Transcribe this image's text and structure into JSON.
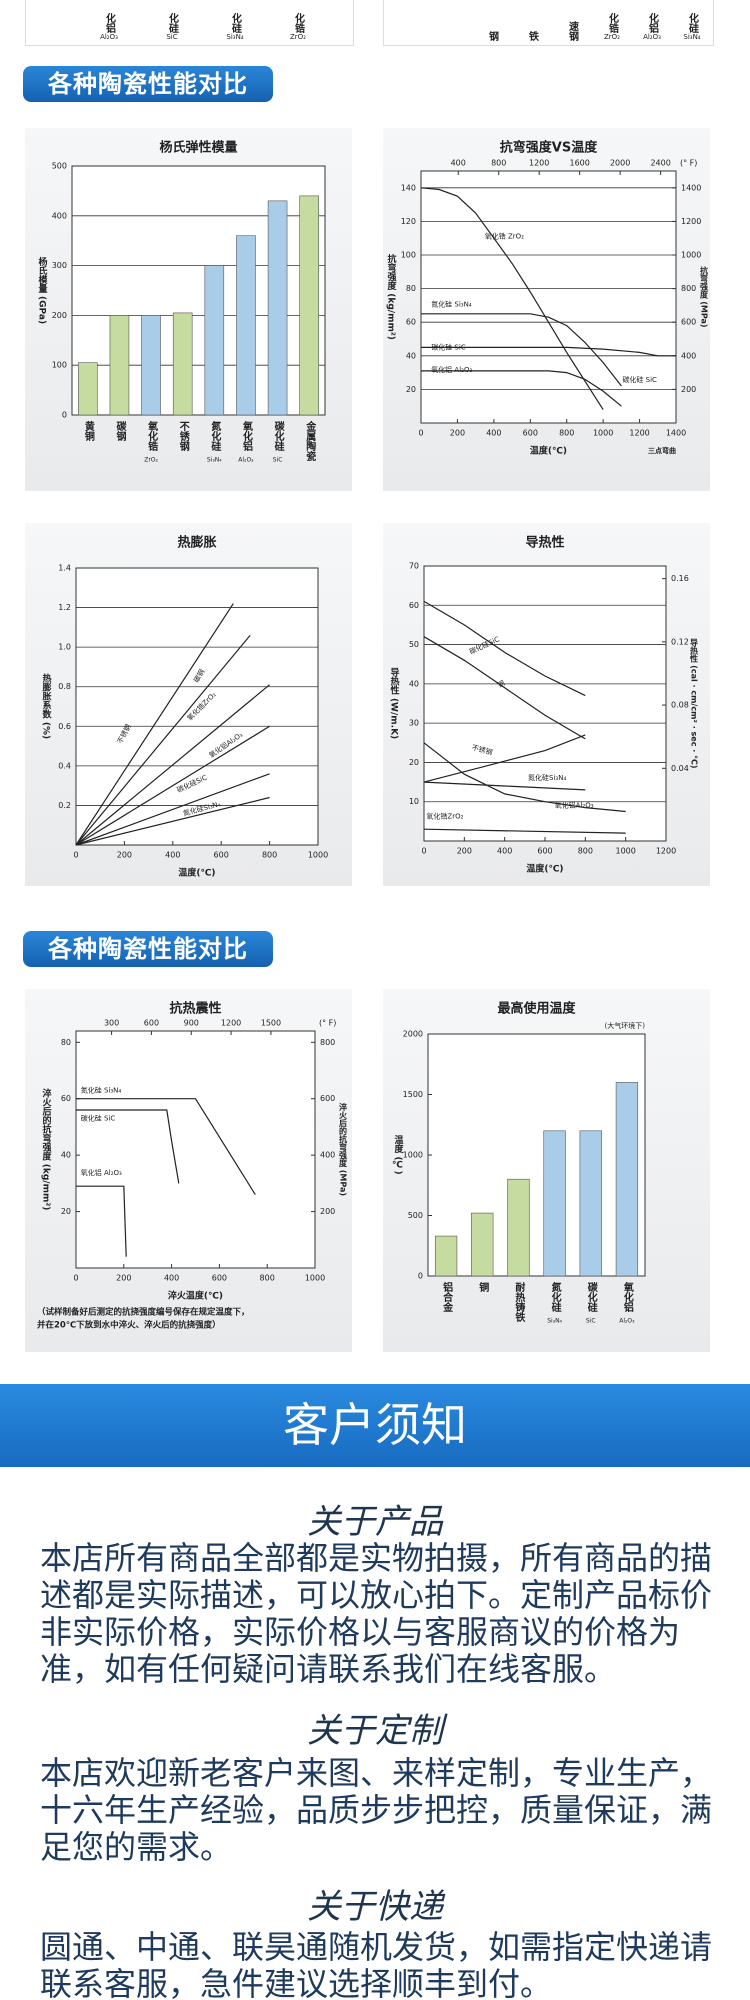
{
  "top_fragment": {
    "left": [
      {
        "label": "化铝",
        "sub": "Al₂O₃"
      },
      {
        "label": "化硅",
        "sub": "SiC"
      },
      {
        "label": "化硅",
        "sub": "Si₃N₄"
      },
      {
        "label": "化锆",
        "sub": "ZrO₂"
      }
    ],
    "right": [
      {
        "label": "钢"
      },
      {
        "label": "铁"
      },
      {
        "label": "速钢"
      },
      {
        "label": "化锆",
        "sub": "ZrO₂"
      },
      {
        "label": "化铝",
        "sub": "Al₂O₃"
      },
      {
        "label": "化硅",
        "sub": "Si₃N₄"
      }
    ]
  },
  "headers": [
    "各种陶瓷性能对比",
    "各种陶瓷性能对比"
  ],
  "chart_data": [
    {
      "type": "bar",
      "title": "杨氏弹性模量",
      "ylabel": "杨氏模量 (GPa)",
      "categories": [
        "黄铜",
        "碳钢",
        "氧化锆",
        "不锈钢",
        "氮化硅",
        "氧化铝",
        "碳化硅",
        "金属陶瓷"
      ],
      "category_sublabels": [
        null,
        null,
        "ZrO₂",
        null,
        "Si₃N₄",
        "Al₂O₃",
        "SiC",
        null
      ],
      "values": [
        105,
        200,
        200,
        205,
        300,
        360,
        430,
        440
      ],
      "colors": [
        "#c5dba0",
        "#c5dba0",
        "#a9cde8",
        "#c5dba0",
        "#a9cde8",
        "#a9cde8",
        "#a9cde8",
        "#c5dba0"
      ],
      "ylim": [
        0,
        500
      ],
      "yticks": [
        0,
        100,
        200,
        300,
        400,
        500
      ],
      "grid": true
    },
    {
      "type": "line",
      "title": "抗弯强度VS温度",
      "xlabel": "温度(℃)",
      "ylabel": "抗弯强度 (kg/mm²)",
      "y2label": "抗弯强度 (MPa)",
      "x2label": "(° F)",
      "note": "三点弯曲",
      "xlim": [
        0,
        1400
      ],
      "xticks": [
        0,
        200,
        400,
        600,
        800,
        1000,
        1200,
        1400
      ],
      "x2lim": [
        32,
        2552
      ],
      "x2ticks": [
        400,
        800,
        1200,
        1600,
        2000,
        2400
      ],
      "ylim": [
        0,
        150
      ],
      "yticks": [
        20,
        40,
        60,
        80,
        100,
        120,
        140
      ],
      "y2lim": [
        0,
        1500
      ],
      "y2ticks": [
        200,
        400,
        600,
        800,
        1000,
        1200,
        1400
      ],
      "grid": true,
      "annotations": [
        "碳化硅 SiC"
      ],
      "series": [
        {
          "name": "氧化锆 ZrO₂",
          "color": "#222222",
          "x": [
            0,
            100,
            200,
            300,
            400,
            500,
            600,
            700,
            800,
            900,
            1000
          ],
          "values": [
            140,
            139,
            135,
            125,
            110,
            95,
            78,
            60,
            42,
            25,
            8
          ]
        },
        {
          "name": "氮化硅 Si₃N₄",
          "color": "#222222",
          "x": [
            0,
            600,
            700,
            800,
            900,
            1000,
            1100
          ],
          "values": [
            65,
            65,
            63,
            58,
            48,
            36,
            22
          ]
        },
        {
          "name": "碳化硅 SiC",
          "color": "#222222",
          "x": [
            0,
            800,
            1000,
            1200,
            1300,
            1400
          ],
          "values": [
            45,
            45,
            44,
            42,
            40,
            40
          ]
        },
        {
          "name": "氧化铝 Al₂O₃",
          "color": "#222222",
          "x": [
            0,
            700,
            800,
            900,
            1000,
            1100
          ],
          "values": [
            31,
            31,
            30,
            26,
            19,
            10
          ]
        }
      ]
    },
    {
      "type": "line",
      "title": "热膨胀",
      "xlabel": "温度(℃)",
      "ylabel": "热膨胀系数 (%)",
      "xlim": [
        0,
        1000
      ],
      "xticks": [
        0,
        200,
        400,
        600,
        800,
        1000
      ],
      "ylim": [
        0,
        1.4
      ],
      "yticks": [
        0.2,
        0.4,
        0.6,
        0.8,
        {
          "value": 1,
          "label": "1.0"
        },
        1.2,
        1.4
      ],
      "grid": true,
      "series": [
        {
          "name": "不锈钢",
          "color": "#222222",
          "x": [
            0,
            650
          ],
          "values": [
            0,
            1.22
          ]
        },
        {
          "name": "碳钢",
          "color": "#222222",
          "x": [
            0,
            720
          ],
          "values": [
            0,
            1.06
          ]
        },
        {
          "name": "氧化锆ZrO₂",
          "color": "#222222",
          "x": [
            0,
            800
          ],
          "values": [
            0,
            0.81
          ]
        },
        {
          "name": "氧化铝Al₂O₃",
          "color": "#222222",
          "x": [
            0,
            800
          ],
          "values": [
            0,
            0.6
          ]
        },
        {
          "name": "碳化硅SiC",
          "color": "#222222",
          "x": [
            0,
            800
          ],
          "values": [
            0,
            0.36
          ]
        },
        {
          "name": "氮化硅Si₃N₄",
          "color": "#222222",
          "x": [
            0,
            800
          ],
          "values": [
            0,
            0.24
          ]
        }
      ]
    },
    {
      "type": "line",
      "title": "导热性",
      "xlabel": "温度(℃)",
      "ylabel": "导热性 (W/m.K)",
      "y2label": "导热性 (cal · cm/cm² · sec · °C)",
      "xlim": [
        0,
        1200
      ],
      "xticks": [
        0,
        200,
        400,
        600,
        800,
        1000,
        1200
      ],
      "ylim": [
        0,
        70
      ],
      "yticks": [
        10,
        20,
        30,
        40,
        50,
        60,
        70
      ],
      "y2lim": [
        -0.006,
        0.168
      ],
      "y2ticks": [
        0.04,
        0.08,
        0.12,
        0.16
      ],
      "grid": true,
      "series": [
        {
          "name": "碳化硅SiC",
          "color": "#222222",
          "x": [
            0,
            200,
            400,
            600,
            800
          ],
          "values": [
            61,
            55,
            48,
            42,
            37
          ]
        },
        {
          "name": "钢",
          "color": "#222222",
          "x": [
            0,
            200,
            400,
            600,
            800
          ],
          "values": [
            52,
            46,
            39,
            32,
            26
          ]
        },
        {
          "name": "不锈钢",
          "color": "#222222",
          "x": [
            0,
            300,
            600,
            800
          ],
          "values": [
            15,
            19,
            23,
            27
          ]
        },
        {
          "name": "氮化硅Si₃N₄",
          "color": "#222222",
          "x": [
            0,
            400,
            800
          ],
          "values": [
            15,
            14,
            13
          ]
        },
        {
          "name": "氧化铝Al₂O₃",
          "color": "#222222",
          "x": [
            0,
            200,
            400,
            600,
            800,
            1000
          ],
          "values": [
            25,
            17,
            12,
            10,
            8.5,
            7.5
          ]
        },
        {
          "name": "氧化锆ZrO₂",
          "color": "#222222",
          "x": [
            0,
            1000
          ],
          "values": [
            3,
            2
          ]
        }
      ]
    },
    {
      "type": "line",
      "title": "抗热震性",
      "xlabel": "淬火温度(℃)",
      "ylabel": "淬火后的抗弯强度 (kg/mm²)",
      "y2label": "淬火后的抗弯强度 (MPa)",
      "x2label": "(° F)",
      "note": [
        "（试样制备好后测定的抗挠强度编号保存在规定温度下，",
        "并在20℃下放到水中淬火、淬火后的抗挠强度）"
      ],
      "xlim": [
        0,
        1000
      ],
      "xticks": [
        0,
        200,
        400,
        600,
        800,
        1000
      ],
      "x2lim": [
        32,
        1832
      ],
      "x2ticks": [
        300,
        600,
        900,
        1200,
        1500
      ],
      "ylim": [
        0,
        84
      ],
      "yticks": [
        20,
        40,
        60,
        80
      ],
      "y2lim": [
        0,
        840
      ],
      "y2ticks": [
        200,
        400,
        600,
        800
      ],
      "grid": false,
      "series": [
        {
          "name": "氮化硅 Si₃N₄",
          "color": "#222222",
          "x": [
            0,
            500,
            750
          ],
          "values": [
            60,
            60,
            26
          ]
        },
        {
          "name": "碳化硅 SiC",
          "color": "#222222",
          "x": [
            0,
            380,
            400,
            430
          ],
          "values": [
            56,
            56,
            45,
            30
          ]
        },
        {
          "name": "氧化铝 Al₂O₃",
          "color": "#222222",
          "x": [
            0,
            200,
            210
          ],
          "values": [
            29,
            29,
            4
          ]
        }
      ]
    },
    {
      "type": "bar",
      "title": "最高使用温度",
      "subtitle": "(大气环境下)",
      "ylabel": "温度 (℃)",
      "categories": [
        "铝合金",
        "铜",
        "耐热铸铁",
        "氮化硅",
        "碳化硅",
        "氧化铝"
      ],
      "category_sublabels": [
        null,
        null,
        null,
        "Si₃N₄",
        "SiC",
        "Al₂O₃"
      ],
      "values": [
        330,
        520,
        800,
        1200,
        1200,
        1600
      ],
      "colors": [
        "#c5dba0",
        "#c5dba0",
        "#c5dba0",
        "#a9cde8",
        "#a9cde8",
        "#a9cde8"
      ],
      "ylim": [
        0,
        2000
      ],
      "yticks": [
        0,
        500,
        1000,
        1500,
        2000
      ],
      "grid": false
    }
  ],
  "notice": {
    "title": "客户须知",
    "sections": [
      {
        "heading": "关于产品",
        "body": "本店所有商品全部都是实物拍摄，所有商品的描述都是实际描述，可以放心拍下。定制产品标价非实际价格，实际价格以与客服商议的价格为准，如有任何疑问请联系我们在线客服。"
      },
      {
        "heading": "关于定制",
        "body": "本店欢迎新老客户来图、来样定制，专业生产，十六年生产经验，品质步步把控，质量保证，满足您的需求。"
      },
      {
        "heading": "关于快递",
        "body": "圆通、中通、联昊通随机发货，如需指定快递请联系客服，急件建议选择顺丰到付。"
      }
    ]
  }
}
